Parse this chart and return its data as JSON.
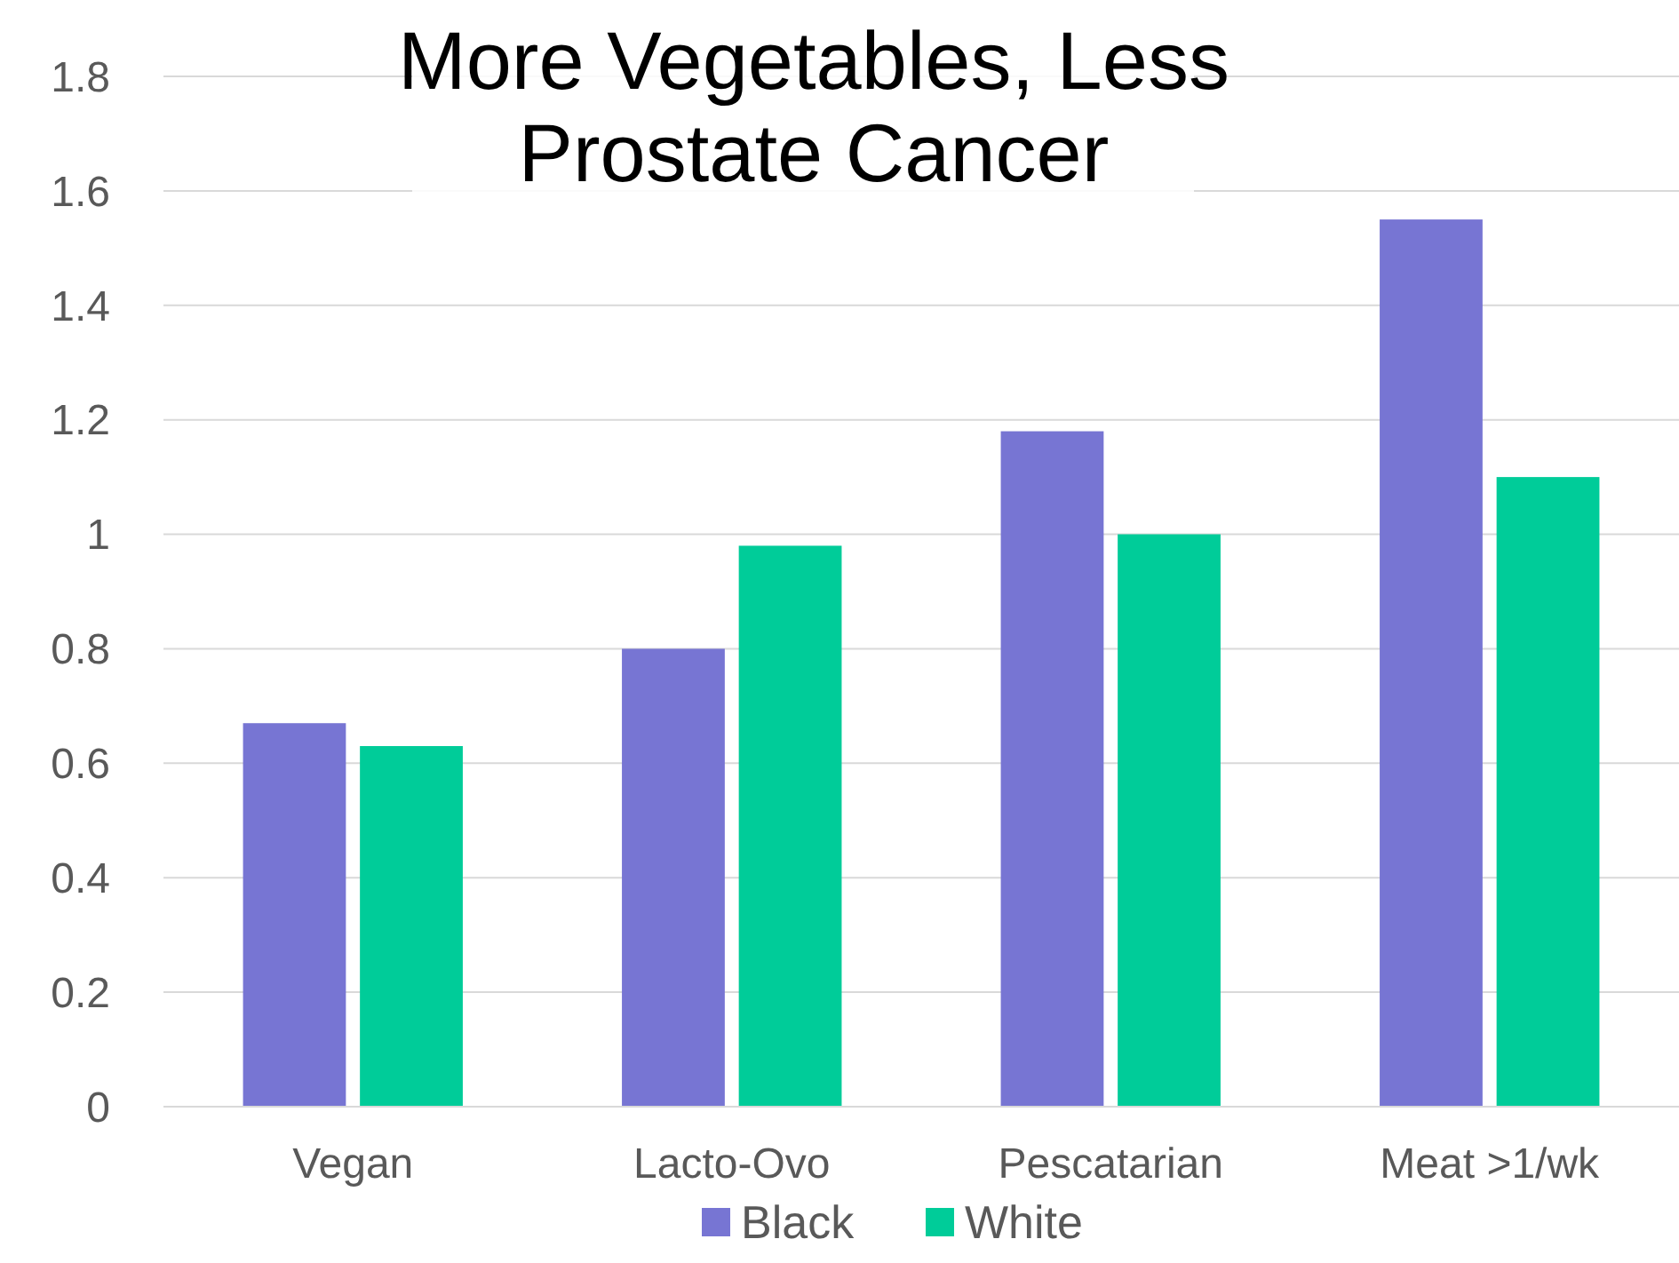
{
  "chart_data": {
    "type": "bar",
    "title": "More Vegetables, Less Prostate Cancer",
    "categories": [
      "Vegan",
      "Lacto-Ovo",
      "Pescatarian",
      "Meat >1/wk"
    ],
    "series": [
      {
        "name": "Black",
        "color": "#7775d3",
        "values": [
          0.67,
          0.8,
          1.18,
          1.55
        ]
      },
      {
        "name": "White",
        "color": "#00cc99",
        "values": [
          0.63,
          0.98,
          1.0,
          1.1
        ]
      }
    ],
    "ylim": [
      0,
      1.8
    ],
    "yticks": [
      0,
      0.2,
      0.4,
      0.6,
      0.8,
      1,
      1.2,
      1.4,
      1.6,
      1.8
    ],
    "grid": "y",
    "legend": "bottom"
  }
}
